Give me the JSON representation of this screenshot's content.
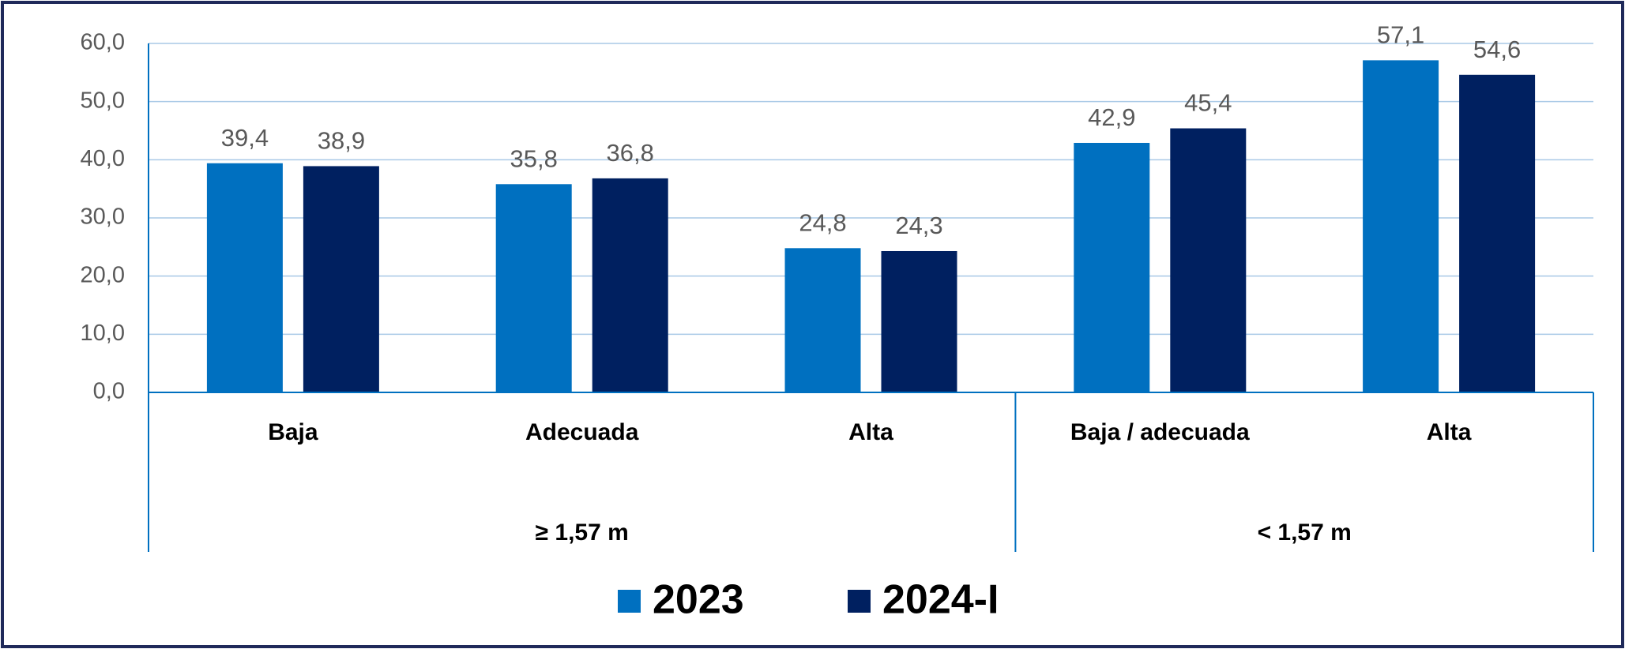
{
  "chart_data": {
    "type": "bar",
    "groups": [
      {
        "name": "≥ 1,57 m",
        "categories": [
          "Baja",
          "Adecuada",
          "Alta"
        ]
      },
      {
        "name": "< 1,57 m",
        "categories": [
          "Baja / adecuada",
          "Alta"
        ]
      }
    ],
    "series": [
      {
        "name": "2023",
        "color": "#0070c0",
        "values": [
          39.4,
          35.8,
          24.8,
          42.9,
          57.1
        ],
        "value_labels": [
          "39,4",
          "35,8",
          "24,8",
          "42,9",
          "57,1"
        ]
      },
      {
        "name": "2024-I",
        "color": "#002060",
        "values": [
          38.9,
          36.8,
          24.3,
          45.4,
          54.6
        ],
        "value_labels": [
          "38,9",
          "36,8",
          "24,3",
          "45,4",
          "54,6"
        ]
      }
    ],
    "ylim": [
      0,
      60
    ],
    "yticks": [
      {
        "value": 0,
        "label": "0,0"
      },
      {
        "value": 10,
        "label": "10,0"
      },
      {
        "value": 20,
        "label": "20,0"
      },
      {
        "value": 30,
        "label": "30,0"
      },
      {
        "value": 40,
        "label": "40,0"
      },
      {
        "value": 50,
        "label": "50,0"
      },
      {
        "value": 60,
        "label": "60,0"
      }
    ],
    "grid": true,
    "legend": "bottom"
  }
}
